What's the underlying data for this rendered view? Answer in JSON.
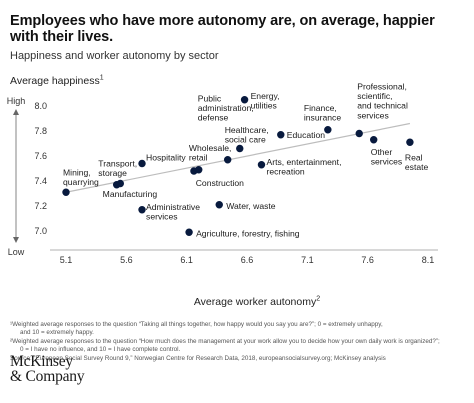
{
  "title": "Employees who have more autonomy are, on average, happier with their lives.",
  "subtitle": "Happiness and worker autonomy by sector",
  "chart_data": {
    "type": "scatter",
    "xlabel": "Average worker autonomy",
    "xlabel_note": "2",
    "ylabel": "Average happiness",
    "ylabel_note": "1",
    "y_axis_high": "High",
    "y_axis_low": "Low",
    "xlim": [
      5.0,
      8.1
    ],
    "ylim": [
      6.9,
      8.05
    ],
    "x_ticks": [
      5.1,
      5.6,
      6.1,
      6.6,
      7.1,
      7.6,
      8.1
    ],
    "x_tick_labels": [
      "5.1",
      "5.6",
      "6.1",
      "6.6",
      "7.1",
      "7.6",
      "8.1"
    ],
    "y_ticks": [
      7.0,
      7.2,
      7.4,
      7.6,
      7.8,
      8.0
    ],
    "y_tick_labels": [
      "7.0",
      "7.2",
      "7.4",
      "7.6",
      "7.8",
      "8.0"
    ],
    "grid": false,
    "trendline": {
      "x": [
        5.1,
        7.95
      ],
      "y": [
        7.31,
        7.86
      ]
    },
    "points": [
      {
        "label": "Mining,\nquarrying",
        "x": 5.1,
        "y": 7.31
      },
      {
        "label": "Manufacturing",
        "x": 5.52,
        "y": 7.37
      },
      {
        "label": "Transport,\nstorage",
        "x": 5.55,
        "y": 7.38
      },
      {
        "label": "Hospitality",
        "x": 5.73,
        "y": 7.54
      },
      {
        "label": "Administrative\nservices",
        "x": 5.73,
        "y": 7.17
      },
      {
        "label": "Agriculture, forestry, fishing",
        "x": 6.12,
        "y": 6.99
      },
      {
        "label": "Wholesale,\nretail",
        "x": 6.16,
        "y": 7.48
      },
      {
        "label": "Construction",
        "x": 6.2,
        "y": 7.49
      },
      {
        "label": "Water, waste",
        "x": 6.37,
        "y": 7.21
      },
      {
        "label": "Healthcare,\nsocial care",
        "x": 6.44,
        "y": 7.57
      },
      {
        "label": "Public\nadministration,\ndefense",
        "x": 6.54,
        "y": 7.66
      },
      {
        "label": "Energy,\nutilities",
        "x": 6.58,
        "y": 8.05
      },
      {
        "label": "Arts, entertainment,\nrecreation",
        "x": 6.72,
        "y": 7.53
      },
      {
        "label": "Education",
        "x": 6.88,
        "y": 7.77
      },
      {
        "label": "Finance,\ninsurance",
        "x": 7.27,
        "y": 7.81
      },
      {
        "label": "Professional,\nscientific,\nand technical\nservices",
        "x": 7.53,
        "y": 7.78
      },
      {
        "label": "Other\nservices",
        "x": 7.65,
        "y": 7.73
      },
      {
        "label": "Real\nestate",
        "x": 7.95,
        "y": 7.71
      }
    ]
  },
  "notes": [
    "¹Weighted average responses to the question “Taking all things together, how happy would you say you are?”; 0 = extremely unhappy,",
    "and 10 = extremely happy.",
    "²Weighted average responses to the question “How much does the management at your work allow you to decide how your own daily work is organized?”;",
    "0 = I have no influence, and 10 = I have complete control.",
    "Source: “European Social Survey Round 9,” Norwegian Centre for Research Data, 2018, europeansocialsurvey.org; McKinsey analysis"
  ],
  "logo": {
    "line1": "McKinsey",
    "line2": "& Company"
  }
}
